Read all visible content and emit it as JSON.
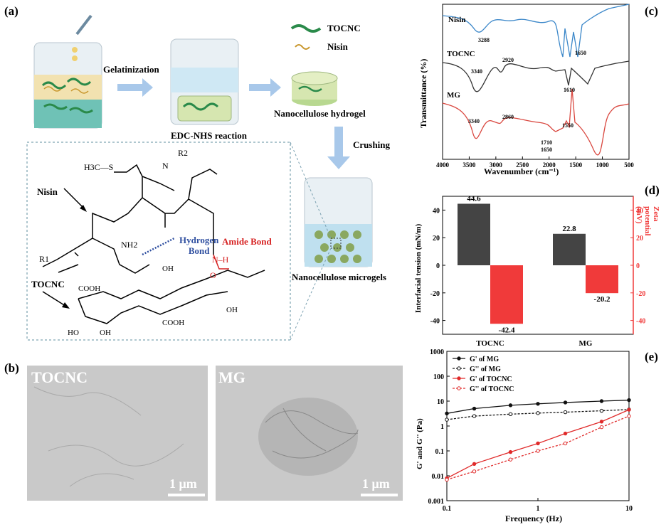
{
  "panels": {
    "a": "(a)",
    "b": "(b)",
    "c": "(c)",
    "d": "(d)",
    "e": "(e)"
  },
  "schematic": {
    "legend_tocnc": "TOCNC",
    "legend_nisin": "Nisin",
    "step_gelatinization": "Gelatinization",
    "step_edc": "EDC-NHS reaction",
    "product_hydrogel": "Nanocellulose hydrogel",
    "step_crushing": "Crushing",
    "product_microgels": "Nanocellulose microgels"
  },
  "chemistry": {
    "nisin_label": "Nisin",
    "tocnc_label": "TOCNC",
    "hydrogen_bond": [
      "Hydrogen",
      "Bond"
    ],
    "amide_bond": "Amide Bond",
    "groups": {
      "h3c_s": "H3C—S",
      "nh_r2": "N",
      "r2": "R2",
      "r1": "R1",
      "nh2": "NH2",
      "nh": "N",
      "h": "H",
      "o": "O",
      "oh": "OH",
      "cooh": "COOH",
      "ho": "HO"
    }
  },
  "tem": {
    "left_label": "TOCNC",
    "right_label": "MG",
    "scale_left": "1 μm",
    "scale_right": "1 μm"
  },
  "colors": {
    "nisin_ftir": "#3b87c9",
    "tocnc_ftir": "#333333",
    "mg_ftir": "#d9473f",
    "bar_dark": "#444444",
    "bar_red": "#f03a3a",
    "hbond_blue": "#2f4fa0",
    "amide_red": "#d62020",
    "arrow_blue": "#a8c8ea"
  },
  "chart_data": [
    {
      "id": "c",
      "type": "line",
      "xlabel": "Wavenumber (cm⁻¹)",
      "ylabel": "Transmittance (%)",
      "xlim": [
        4000,
        500
      ],
      "xticks": [
        4000,
        3500,
        3000,
        2500,
        2000,
        1500,
        1000,
        500
      ],
      "series": [
        {
          "name": "Nisin",
          "peaks": [
            "3288",
            "1650"
          ]
        },
        {
          "name": "TOCNC",
          "peaks": [
            "3340",
            "2920",
            "1610"
          ]
        },
        {
          "name": "MG",
          "peaks": [
            "3340",
            "2860",
            "1550",
            "1710",
            "1650"
          ]
        }
      ]
    },
    {
      "id": "d",
      "type": "bar",
      "categories": [
        "TOCNC",
        "MG"
      ],
      "ylabel": "Interfacial tension (mN/m)",
      "y2label": "Zeta potential (mV)",
      "ylim": [
        -50,
        50
      ],
      "yticks": [
        -40,
        -20,
        0,
        20,
        40
      ],
      "series": [
        {
          "name": "Interfacial tension",
          "values": [
            44.6,
            22.8
          ],
          "labels": [
            "44.6",
            "22.8"
          ]
        },
        {
          "name": "Zeta potential",
          "values": [
            -42.4,
            -20.2
          ],
          "labels": [
            "-42.4",
            "-20.2"
          ]
        }
      ]
    },
    {
      "id": "e",
      "type": "line",
      "xlabel": "Frequency (Hz)",
      "ylabel": "G' and G'' (Pa)",
      "xscale": "log",
      "yscale": "log",
      "xlim": [
        0.1,
        10
      ],
      "ylim": [
        0.001,
        1000
      ],
      "xticks": [
        "0.1",
        "1",
        "10"
      ],
      "yticks": [
        "0.001",
        "0.01",
        "0.1",
        "1",
        "10",
        "100",
        "1000"
      ],
      "legend_position": "top-left",
      "x": [
        0.1,
        0.2,
        0.5,
        1,
        2,
        5,
        10
      ],
      "series": [
        {
          "name": "G' of MG",
          "values": [
            3.2,
            5.0,
            6.8,
            7.8,
            8.8,
            10.0,
            11.0
          ]
        },
        {
          "name": "G'' of MG",
          "values": [
            1.8,
            2.5,
            3.0,
            3.3,
            3.6,
            4.1,
            4.6
          ]
        },
        {
          "name": "G' of TOCNC",
          "values": [
            0.008,
            0.03,
            0.09,
            0.2,
            0.5,
            1.5,
            4.5
          ]
        },
        {
          "name": "G'' of TOCNC",
          "values": [
            0.007,
            0.015,
            0.045,
            0.1,
            0.2,
            0.9,
            2.5
          ]
        }
      ]
    }
  ]
}
